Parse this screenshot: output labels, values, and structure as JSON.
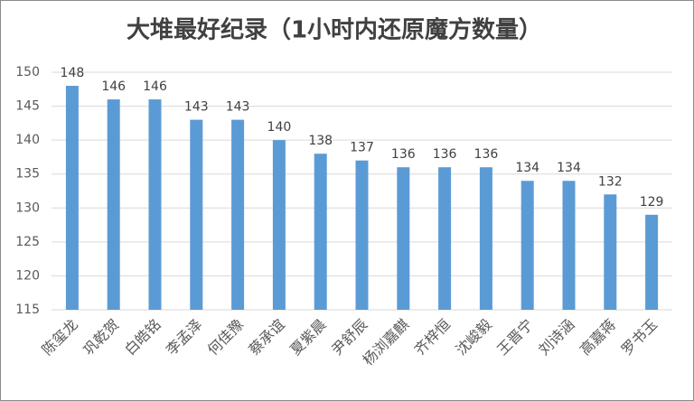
{
  "chart_data": {
    "type": "bar",
    "title": "大堆最好纪录（1小时内还原魔方数量）",
    "categories": [
      "陈玺龙",
      "巩乾贺",
      "白皓铭",
      "李孟泽",
      "何佳豫",
      "蔡承谊",
      "夏紫晨",
      "尹舒辰",
      "杨浏嘉麒",
      "齐梓恒",
      "沈峻毅",
      "王晋宁",
      "刘诗涵",
      "高嘉蒋",
      "罗书玉"
    ],
    "values": [
      148,
      146,
      146,
      143,
      143,
      140,
      138,
      137,
      136,
      136,
      136,
      134,
      134,
      132,
      129
    ],
    "color": "#5b9bd5",
    "ylim": [
      115,
      150
    ],
    "yticks": [
      115,
      120,
      125,
      130,
      135,
      140,
      145,
      150
    ],
    "grid": true
  }
}
